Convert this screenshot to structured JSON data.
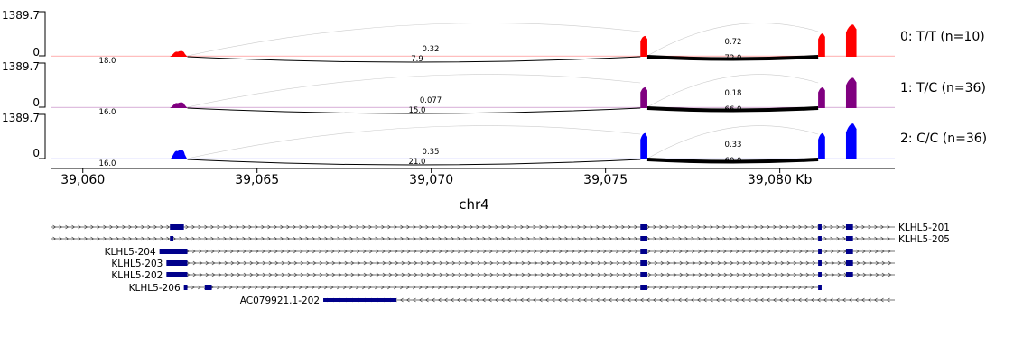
{
  "chart_data": {
    "type": "sashimi",
    "y_axis": {
      "max_label": "1389.7",
      "min_label": "0",
      "ylim": [
        0,
        1389.7
      ]
    },
    "x_axis": {
      "unit_label": "Kb",
      "range_kb": [
        39059.1,
        39083.3
      ],
      "ticks": [
        {
          "value": 39060,
          "label": "39,060"
        },
        {
          "value": 39065,
          "label": "39,065"
        },
        {
          "value": 39070,
          "label": "39,070"
        },
        {
          "value": 39075,
          "label": "39,075"
        },
        {
          "value": 39080,
          "label": "39,080 Kb"
        }
      ]
    },
    "chrom_label": "chr4",
    "exons_kb": [
      [
        39062.5,
        39063.0
      ],
      [
        39076.0,
        39076.2
      ],
      [
        39081.1,
        39081.3
      ],
      [
        39081.9,
        39082.2
      ]
    ],
    "tracks": [
      {
        "label": "0: T/T (n=10)",
        "color": "#ff0000",
        "junction_labels": [
          "18.0",
          "0.32",
          "7.9",
          "0.72",
          "72.0"
        ],
        "peak_heights": [
          0.16,
          0.55,
          0.62,
          0.85
        ]
      },
      {
        "label": "1: T/C (n=36)",
        "color": "#800080",
        "junction_labels": [
          "16.0",
          "0.077",
          "15.0",
          "0.18",
          "66.0"
        ],
        "peak_heights": [
          0.16,
          0.55,
          0.55,
          0.8
        ]
      },
      {
        "label": "2: C/C (n=36)",
        "color": "#0000ff",
        "junction_labels": [
          "16.0",
          "0.35",
          "21.0",
          "0.33",
          "60.0"
        ],
        "peak_heights": [
          0.27,
          0.7,
          0.7,
          0.95
        ]
      }
    ],
    "transcripts": [
      {
        "name": "KLHL5-201",
        "label_side": "right",
        "strand": "+",
        "start_kb": 39059.1,
        "end_kb": 39083.3,
        "exons_kb": [
          [
            39062.5,
            39062.9
          ],
          [
            39076.0,
            39076.2
          ],
          [
            39081.1,
            39081.2
          ],
          [
            39081.9,
            39082.1
          ]
        ]
      },
      {
        "name": "KLHL5-205",
        "label_side": "right",
        "strand": "+",
        "start_kb": 39059.1,
        "end_kb": 39083.3,
        "exons_kb": [
          [
            39062.5,
            39062.6
          ],
          [
            39076.0,
            39076.2
          ],
          [
            39081.1,
            39081.2
          ],
          [
            39081.9,
            39082.1
          ]
        ]
      },
      {
        "name": "KLHL5-204",
        "label_side": "left",
        "strand": "+",
        "start_kb": 39062.2,
        "end_kb": 39083.3,
        "exons_kb": [
          [
            39062.2,
            39063.0
          ],
          [
            39076.0,
            39076.2
          ],
          [
            39081.1,
            39081.2
          ],
          [
            39081.9,
            39082.1
          ]
        ]
      },
      {
        "name": "KLHL5-203",
        "label_side": "left",
        "strand": "+",
        "start_kb": 39062.4,
        "end_kb": 39083.3,
        "exons_kb": [
          [
            39062.4,
            39063.0
          ],
          [
            39076.0,
            39076.2
          ],
          [
            39081.1,
            39081.2
          ],
          [
            39081.9,
            39082.1
          ]
        ]
      },
      {
        "name": "KLHL5-202",
        "label_side": "left",
        "strand": "+",
        "start_kb": 39062.4,
        "end_kb": 39083.3,
        "exons_kb": [
          [
            39062.4,
            39063.0
          ],
          [
            39076.0,
            39076.2
          ],
          [
            39081.1,
            39081.2
          ],
          [
            39081.9,
            39082.1
          ]
        ]
      },
      {
        "name": "KLHL5-206",
        "label_side": "left",
        "strand": "+",
        "start_kb": 39062.9,
        "end_kb": 39081.1,
        "exons_kb": [
          [
            39062.9,
            39063.0
          ],
          [
            39063.5,
            39063.7
          ],
          [
            39076.0,
            39076.2
          ],
          [
            39081.1,
            39081.2
          ]
        ]
      },
      {
        "name": "AC079921.1-202",
        "label_side": "left",
        "strand": "-",
        "start_kb": 39066.9,
        "end_kb": 39083.3,
        "exons_kb": [
          [
            39066.9,
            39069.0
          ]
        ]
      }
    ]
  }
}
